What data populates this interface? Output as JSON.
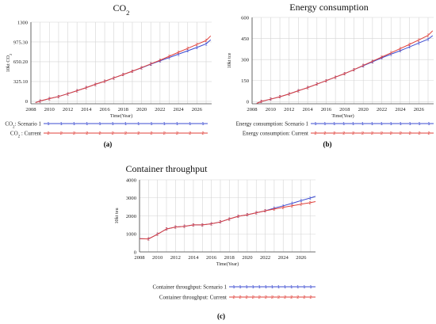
{
  "chart_data": [
    {
      "id": "a",
      "type": "line",
      "title": "CO",
      "title_sub": "2",
      "panel_label": "(a)",
      "xlabel": "Time(Year)",
      "ylabel": "10kt CO",
      "ylabel_sub": "2",
      "xlim": [
        2008,
        2027.6
      ],
      "ylim": [
        -40,
        1300
      ],
      "xticks": [
        2008,
        2010,
        2012,
        2014,
        2016,
        2018,
        2020,
        2022,
        2024,
        2026
      ],
      "yticks": [
        0,
        325.1,
        650.2,
        975.3,
        1300
      ],
      "ytick_labels": [
        "0",
        "325.10",
        "650.20",
        "975.30",
        "1300"
      ],
      "series": [
        {
          "name": "CO",
          "name_sub": "2",
          "name_suffix": ": Scenario 1",
          "marker": "1",
          "color": "#3b4bd0",
          "x": [
            2008.5,
            2009,
            2010,
            2011,
            2012,
            2013,
            2014,
            2015,
            2016,
            2017,
            2018,
            2019,
            2020,
            2021,
            2022,
            2023,
            2024,
            2025,
            2026,
            2027,
            2027.5
          ],
          "values": [
            -20,
            5,
            45,
            80,
            125,
            175,
            225,
            280,
            330,
            385,
            440,
            495,
            550,
            610,
            665,
            720,
            775,
            830,
            885,
            945,
            1010
          ]
        },
        {
          "name": "CO",
          "name_sub": "2",
          "name_suffix": " : Current",
          "marker": "2",
          "color": "#e0403a",
          "x": [
            2008.5,
            2009,
            2010,
            2011,
            2012,
            2013,
            2014,
            2015,
            2016,
            2017,
            2018,
            2019,
            2020,
            2021,
            2022,
            2023,
            2024,
            2025,
            2026,
            2027,
            2027.5
          ],
          "values": [
            -20,
            5,
            45,
            80,
            125,
            175,
            225,
            280,
            330,
            385,
            440,
            495,
            555,
            615,
            675,
            740,
            805,
            870,
            935,
            1000,
            1075
          ]
        }
      ]
    },
    {
      "id": "b",
      "type": "line",
      "title": "Energy consumption",
      "panel_label": "(b)",
      "xlabel": "Time(Year)",
      "ylabel": "10kt tce",
      "xlim": [
        2008,
        2027.6
      ],
      "ylim": [
        -15,
        600
      ],
      "xticks": [
        2008,
        2010,
        2012,
        2014,
        2016,
        2018,
        2020,
        2022,
        2024,
        2026
      ],
      "yticks": [
        0,
        150,
        300,
        450,
        600
      ],
      "ytick_labels": [
        "0",
        "150",
        "300",
        "450",
        "600"
      ],
      "series": [
        {
          "name": "Energy consumption: Scenario 1",
          "marker": "1",
          "color": "#3b4bd0",
          "x": [
            2008.5,
            2009,
            2010,
            2011,
            2012,
            2013,
            2014,
            2015,
            2016,
            2017,
            2018,
            2019,
            2020,
            2021,
            2022,
            2023,
            2024,
            2025,
            2026,
            2027,
            2027.5
          ],
          "values": [
            -12,
            2,
            18,
            35,
            55,
            78,
            100,
            125,
            150,
            175,
            200,
            228,
            256,
            284,
            312,
            338,
            363,
            390,
            418,
            445,
            470
          ]
        },
        {
          "name": "Energy consumption: Current",
          "marker": "2",
          "color": "#e0403a",
          "x": [
            2008.5,
            2009,
            2010,
            2011,
            2012,
            2013,
            2014,
            2015,
            2016,
            2017,
            2018,
            2019,
            2020,
            2021,
            2022,
            2023,
            2024,
            2025,
            2026,
            2027,
            2027.5
          ],
          "values": [
            -12,
            2,
            18,
            35,
            55,
            78,
            100,
            125,
            150,
            175,
            200,
            228,
            258,
            288,
            318,
            348,
            378,
            408,
            440,
            472,
            505
          ]
        }
      ]
    },
    {
      "id": "c",
      "type": "line",
      "title": "Container throughput",
      "panel_label": "(c)",
      "xlabel": "Time(Year)",
      "ylabel": "10kt teu",
      "xlim": [
        2008,
        2027.6
      ],
      "ylim": [
        0,
        4000
      ],
      "xticks": [
        2008,
        2010,
        2012,
        2014,
        2016,
        2018,
        2020,
        2022,
        2024,
        2026
      ],
      "yticks": [
        0,
        1000,
        2000,
        3000,
        4000
      ],
      "ytick_labels": [
        "0",
        "1000",
        "2000",
        "3000",
        "4000"
      ],
      "series": [
        {
          "name": "Container throughput: Scenario 1",
          "marker": "1",
          "color": "#3b4bd0",
          "x": [
            2008,
            2009,
            2010,
            2011,
            2012,
            2013,
            2014,
            2015,
            2016,
            2017,
            2018,
            2019,
            2020,
            2021,
            2022,
            2023,
            2024,
            2025,
            2026,
            2027,
            2027.6
          ],
          "values": [
            740,
            720,
            980,
            1270,
            1380,
            1420,
            1500,
            1500,
            1560,
            1660,
            1830,
            1980,
            2060,
            2170,
            2280,
            2430,
            2560,
            2700,
            2850,
            2990,
            3080
          ]
        },
        {
          "name": "Container throughput: Current",
          "marker": "2",
          "color": "#e0403a",
          "x": [
            2008,
            2009,
            2010,
            2011,
            2012,
            2013,
            2014,
            2015,
            2016,
            2017,
            2018,
            2019,
            2020,
            2021,
            2022,
            2023,
            2024,
            2025,
            2026,
            2027,
            2027.6
          ],
          "values": [
            740,
            720,
            980,
            1270,
            1380,
            1420,
            1500,
            1500,
            1560,
            1660,
            1830,
            1980,
            2060,
            2170,
            2280,
            2380,
            2470,
            2560,
            2650,
            2730,
            2790
          ]
        }
      ]
    }
  ]
}
